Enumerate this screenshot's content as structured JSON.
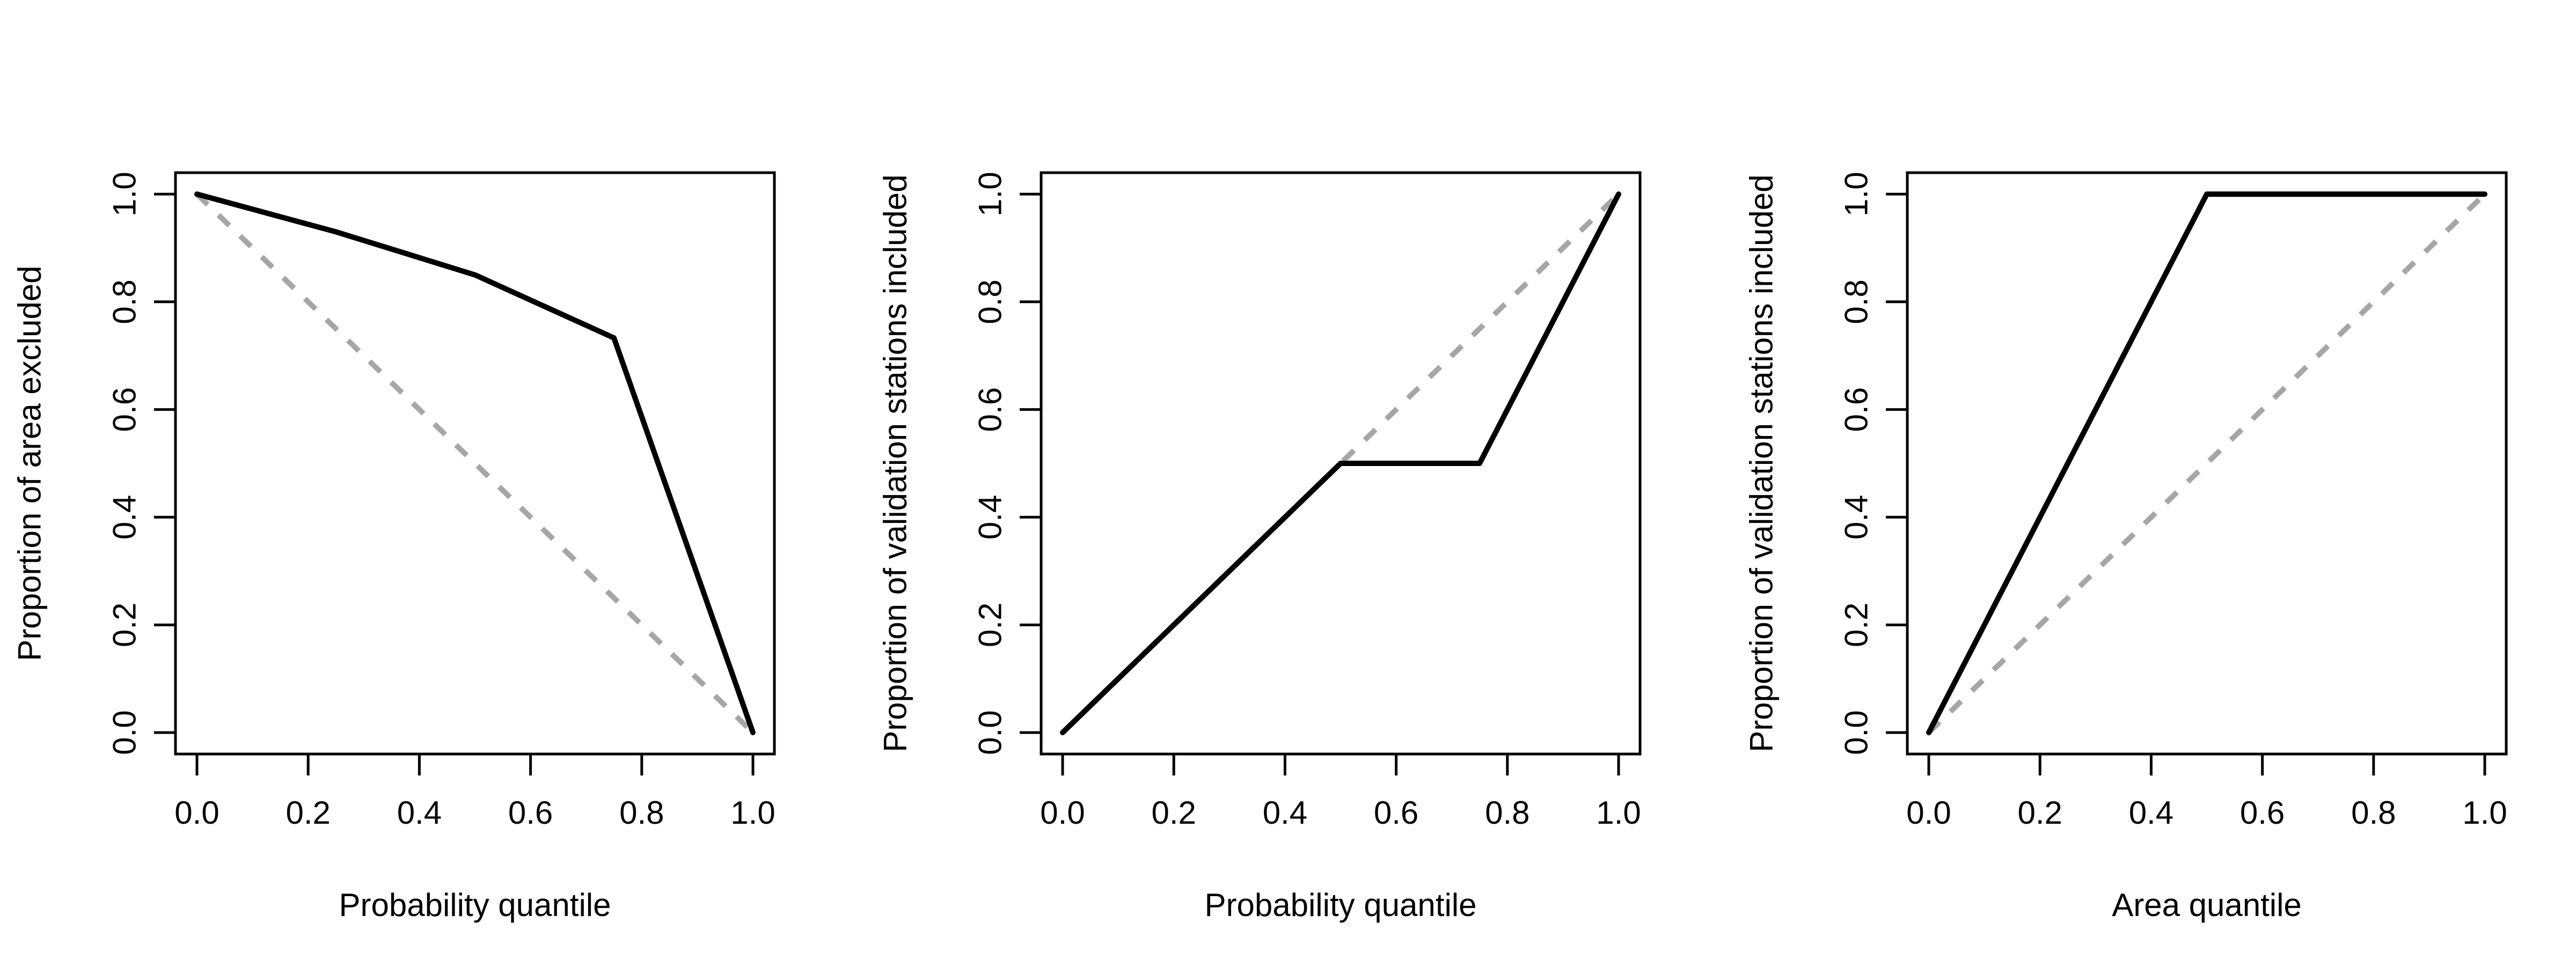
{
  "chart_data": [
    {
      "type": "line",
      "xlabel": "Probability quantile",
      "ylabel": "Proportion of area excluded",
      "xlim": [
        0,
        1
      ],
      "ylim": [
        0,
        1
      ],
      "xticks": [
        "0.0",
        "0.2",
        "0.4",
        "0.6",
        "0.8",
        "1.0"
      ],
      "yticks": [
        "0.0",
        "0.2",
        "0.4",
        "0.6",
        "0.8",
        "1.0"
      ],
      "grid": false,
      "series": [
        {
          "x": [
            0,
            0.25,
            0.5,
            0.75,
            1.0
          ],
          "y": [
            1.0,
            0.93,
            0.85,
            0.733,
            0.0
          ],
          "color": "#000000",
          "style": "solid"
        },
        {
          "x": [
            0,
            1
          ],
          "y": [
            1,
            0
          ],
          "color": "#a6a6a6",
          "style": "dashed"
        }
      ]
    },
    {
      "type": "line",
      "xlabel": "Probability quantile",
      "ylabel": "Proportion of validation stations included",
      "xlim": [
        0,
        1
      ],
      "ylim": [
        0,
        1
      ],
      "xticks": [
        "0.0",
        "0.2",
        "0.4",
        "0.6",
        "0.8",
        "1.0"
      ],
      "yticks": [
        "0.0",
        "0.2",
        "0.4",
        "0.6",
        "0.8",
        "1.0"
      ],
      "grid": false,
      "series": [
        {
          "x": [
            0,
            0.5,
            0.75,
            1.0
          ],
          "y": [
            0,
            0.5,
            0.5,
            1.0
          ],
          "color": "#000000",
          "style": "solid"
        },
        {
          "x": [
            0,
            1
          ],
          "y": [
            0,
            1
          ],
          "color": "#a6a6a6",
          "style": "dashed"
        }
      ]
    },
    {
      "type": "line",
      "xlabel": "Area quantile",
      "ylabel": "Proportion of validation stations included",
      "xlim": [
        0,
        1
      ],
      "ylim": [
        0,
        1
      ],
      "xticks": [
        "0.0",
        "0.2",
        "0.4",
        "0.6",
        "0.8",
        "1.0"
      ],
      "yticks": [
        "0.0",
        "0.2",
        "0.4",
        "0.6",
        "0.8",
        "1.0"
      ],
      "grid": false,
      "series": [
        {
          "x": [
            0,
            0.5,
            1.0
          ],
          "y": [
            0,
            1.0,
            1.0
          ],
          "color": "#000000",
          "style": "solid"
        },
        {
          "x": [
            0,
            1
          ],
          "y": [
            0,
            1
          ],
          "color": "#a6a6a6",
          "style": "dashed"
        }
      ]
    }
  ]
}
